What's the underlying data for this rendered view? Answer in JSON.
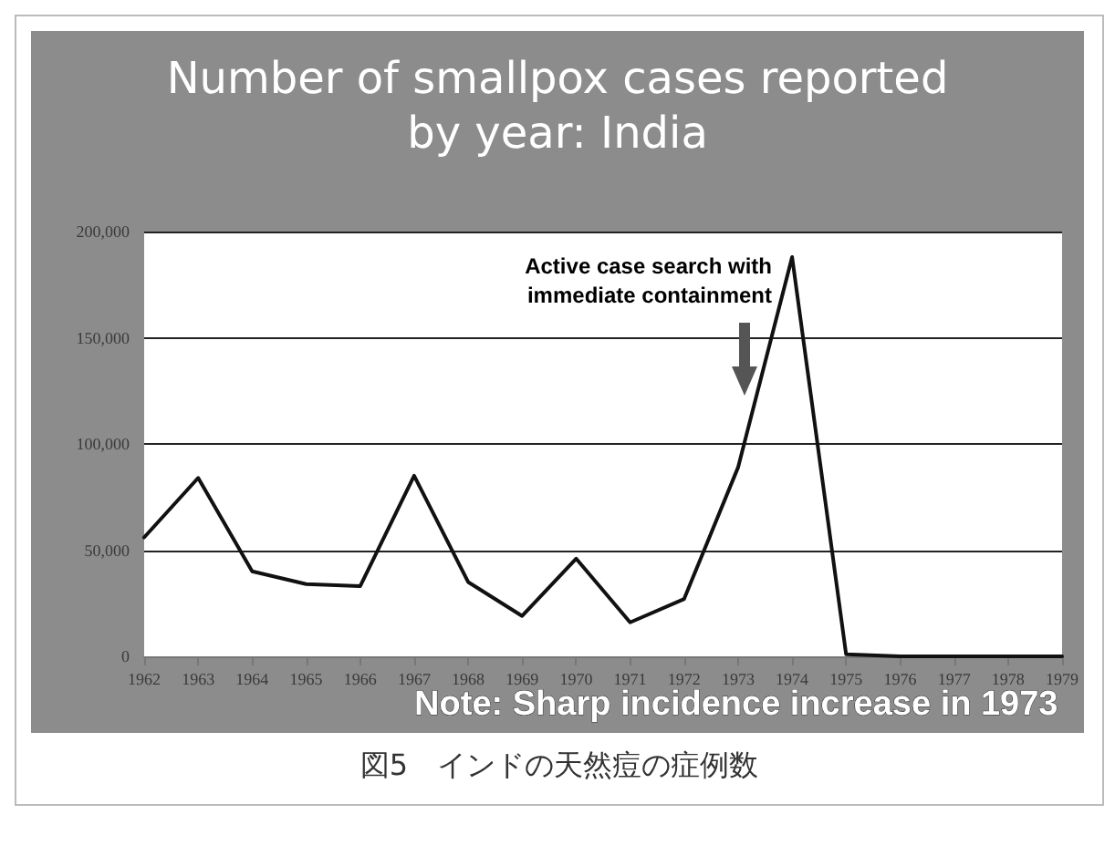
{
  "chart_data": {
    "type": "line",
    "title": "Number of smallpox cases reported\nby year: India",
    "categories": [
      "1962",
      "1963",
      "1964",
      "1965",
      "1966",
      "1967",
      "1968",
      "1969",
      "1970",
      "1971",
      "1972",
      "1973",
      "1974",
      "1975",
      "1976",
      "1977",
      "1978",
      "1979"
    ],
    "values": [
      56000,
      84000,
      40000,
      34000,
      33000,
      85000,
      35000,
      19000,
      46000,
      16000,
      27000,
      89000,
      188000,
      1000,
      0,
      0,
      0,
      0
    ],
    "color": "#111111",
    "ylim": [
      0,
      200000
    ],
    "yticks": [
      0,
      {
        "value": 50000,
        "label": "50,000"
      },
      {
        "value": 100000,
        "label": "100,000"
      },
      {
        "value": 150000,
        "label": "150,000"
      },
      {
        "value": 200000,
        "label": "200,000"
      }
    ],
    "grid": "y",
    "marker": "none",
    "line_style": "solid",
    "annotations": [
      "Active case search with\nimmediate containment",
      "Note: Sharp incidence increase in 1973",
      "図5　インドの天然痘の症例数"
    ]
  }
}
